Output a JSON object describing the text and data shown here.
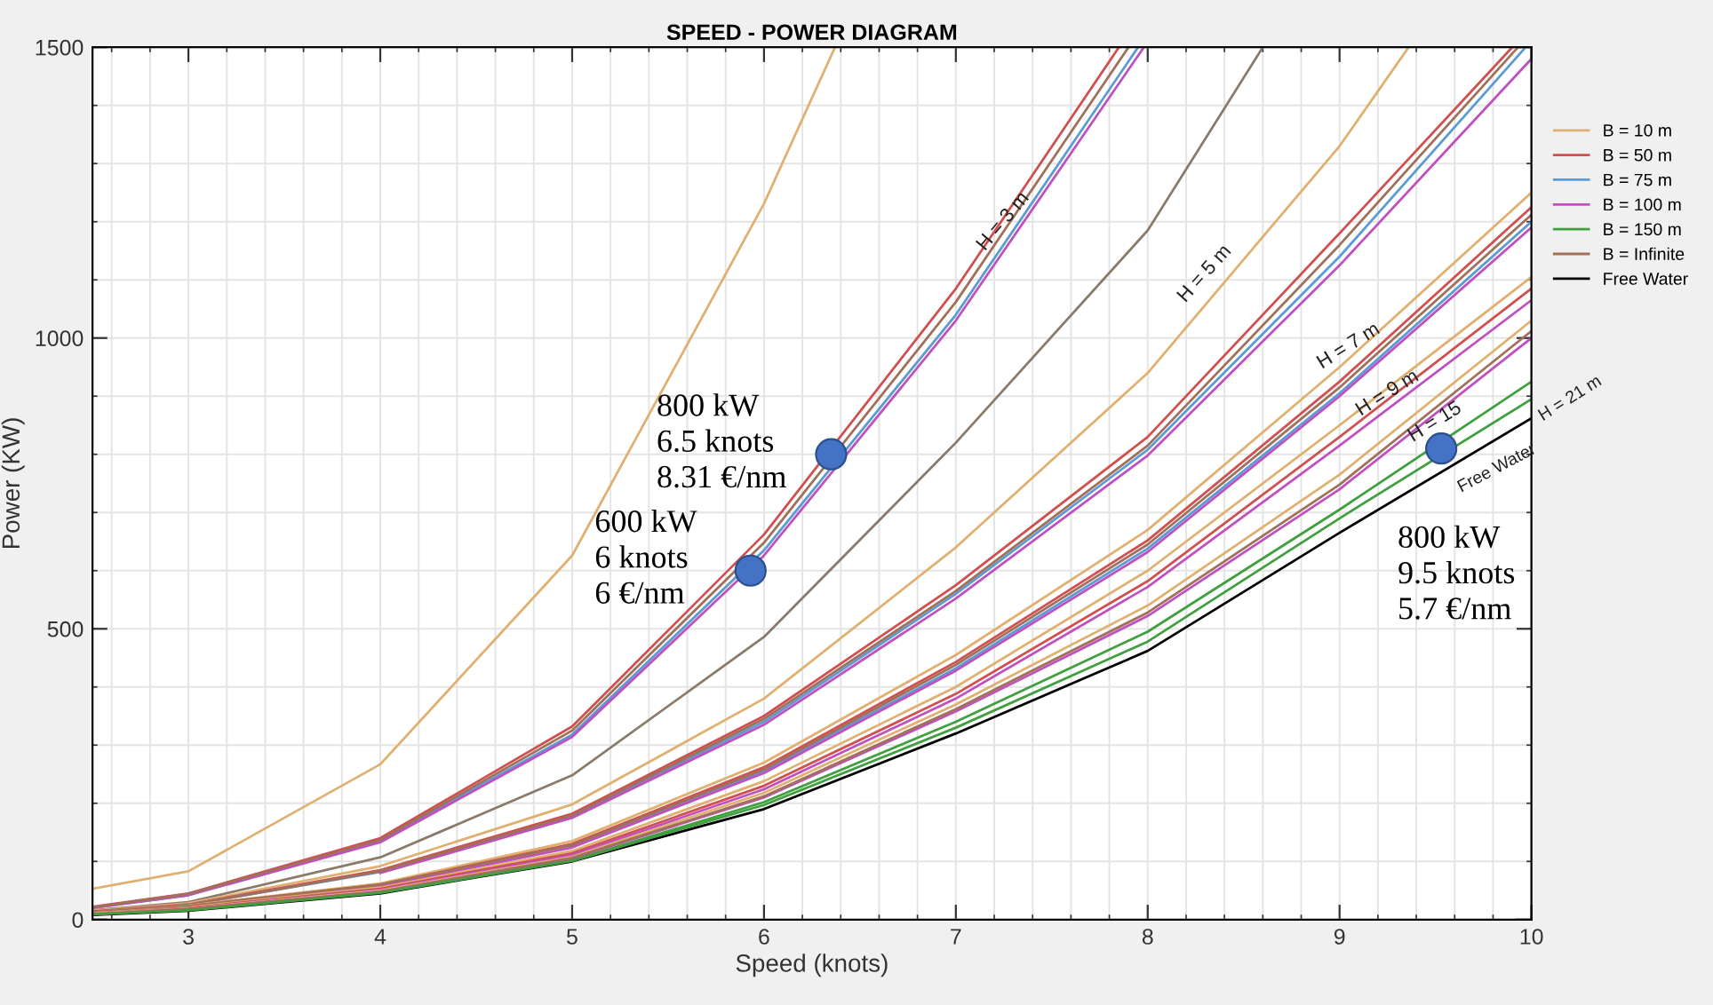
{
  "chart_data": {
    "type": "line",
    "title": "SPEED - POWER DIAGRAM",
    "xlabel": "Speed (knots)",
    "ylabel": "Power (KW)",
    "xlim": [
      2.5,
      10
    ],
    "ylim": [
      0,
      1500
    ],
    "xticks": [
      3,
      4,
      5,
      6,
      7,
      8,
      9,
      10
    ],
    "yticks": [
      0,
      500,
      1000,
      1500
    ],
    "grid": true,
    "legend": "right",
    "marker": "none",
    "line_style": "solid",
    "series": [
      {
        "name": "B = 10 m",
        "color": "#e0b070",
        "x": [
          2.5,
          3,
          4,
          5,
          6,
          6.37
        ],
        "values": [
          53,
          83,
          267,
          626,
          1231,
          1500
        ]
      },
      {
        "name": "B = 50 m",
        "color": "#d05050",
        "x": [
          2.5,
          3,
          4,
          5,
          6,
          7,
          7.85
        ],
        "values": [
          22,
          45,
          140,
          332,
          662,
          1085,
          1500
        ]
      },
      {
        "name": "B = 75 m",
        "color": "#5a9bd5",
        "x": [
          2.5,
          3,
          4,
          5,
          6,
          7,
          7.95
        ],
        "values": [
          20,
          42,
          135,
          318,
          635,
          1040,
          1500
        ]
      },
      {
        "name": "B = 100 m",
        "color": "#c050c0",
        "x": [
          2.5,
          3,
          4,
          5,
          6,
          7,
          7.98
        ],
        "values": [
          20,
          42,
          133,
          314,
          626,
          1030,
          1500
        ]
      },
      {
        "name": "B = 150 m",
        "color": "#40a040",
        "x": [
          2.5,
          3,
          4,
          5,
          6,
          7,
          8,
          9,
          10
        ],
        "values": [
          9,
          17,
          47,
          102,
          202,
          340,
          495,
          705,
          925
        ]
      },
      {
        "name": "B = Infinite",
        "color": "#a0705a",
        "x": [
          2.5,
          3,
          4,
          5,
          6,
          7,
          7.9
        ],
        "values": [
          21,
          44,
          137,
          325,
          648,
          1062,
          1500
        ]
      },
      {
        "name": "Free Water",
        "color": "#000000",
        "x": [
          2.5,
          3,
          4,
          5,
          6,
          7,
          8,
          9,
          10
        ],
        "values": [
          8,
          15,
          45,
          100,
          190,
          320,
          462,
          665,
          862
        ]
      },
      {
        "color": "#8a7a6a",
        "x": [
          2.5,
          3,
          4,
          5,
          6,
          7,
          8,
          8.6
        ],
        "values": [
          16,
          30,
          107,
          248,
          486,
          820,
          1185,
          1500
        ]
      },
      {
        "color": "#e0b070",
        "x": [
          2.5,
          3,
          4,
          5,
          6,
          7,
          8,
          9,
          9.36
        ],
        "values": [
          15,
          28,
          92,
          198,
          380,
          640,
          940,
          1330,
          1500
        ]
      },
      {
        "color": "#d05050",
        "x": [
          2.5,
          3,
          4,
          5,
          6,
          7,
          8,
          9,
          9.9
        ],
        "values": [
          14,
          26,
          85,
          182,
          350,
          575,
          830,
          1180,
          1500
        ]
      },
      {
        "color": "#5a9bd5",
        "x": [
          2.5,
          3,
          4,
          5,
          6,
          7,
          8,
          9,
          9.97
        ],
        "values": [
          13,
          25,
          82,
          177,
          340,
          560,
          808,
          1140,
          1500
        ]
      },
      {
        "color": "#c050c0",
        "x": [
          4,
          5,
          6,
          7,
          8,
          9,
          10
        ],
        "values": [
          80,
          175,
          335,
          552,
          798,
          1125,
          1480
        ]
      },
      {
        "color": "#a0705a",
        "x": [
          2.5,
          3,
          4,
          5,
          6,
          7,
          8,
          9,
          9.93
        ],
        "values": [
          13,
          25,
          83,
          179,
          345,
          565,
          815,
          1160,
          1500
        ]
      },
      {
        "color": "#e0b070",
        "x": [
          2.5,
          3,
          4,
          5,
          6,
          7,
          8,
          9,
          10
        ],
        "values": [
          12,
          24,
          62,
          135,
          270,
          455,
          670,
          950,
          1250
        ]
      },
      {
        "color": "#d05050",
        "x": [
          2.5,
          3,
          4,
          5,
          6,
          7,
          8,
          9,
          10
        ],
        "values": [
          12,
          23,
          60,
          130,
          262,
          443,
          652,
          925,
          1225
        ]
      },
      {
        "color": "#5a9bd5",
        "x": [
          5,
          6,
          7,
          8,
          9,
          10
        ],
        "values": [
          126,
          255,
          432,
          638,
          905,
          1200
        ]
      },
      {
        "color": "#c050c0",
        "x": [
          2.5,
          3,
          4,
          5,
          6,
          7,
          8,
          9,
          10
        ],
        "values": [
          11,
          22,
          57,
          124,
          252,
          428,
          632,
          900,
          1190
        ]
      },
      {
        "color": "#a0705a",
        "x": [
          2.5,
          3,
          4,
          5,
          6,
          7,
          8,
          9,
          10
        ],
        "values": [
          12,
          23,
          60,
          128,
          258,
          438,
          645,
          915,
          1212
        ]
      },
      {
        "color": "#e0b070",
        "x": [
          2.5,
          3,
          4,
          5,
          6,
          7,
          8,
          9,
          10
        ],
        "values": [
          11,
          21,
          55,
          118,
          238,
          400,
          600,
          850,
          1105
        ]
      },
      {
        "color": "#d05050",
        "x": [
          2.5,
          3,
          4,
          5,
          6,
          7,
          8,
          9,
          10
        ],
        "values": [
          10,
          20,
          53,
          114,
          230,
          388,
          582,
          830,
          1085
        ]
      },
      {
        "color": "#c050c0",
        "x": [
          2.5,
          3,
          4,
          5,
          6,
          7,
          8,
          9,
          10
        ],
        "values": [
          10,
          19,
          51,
          111,
          224,
          380,
          572,
          815,
          1065
        ]
      },
      {
        "color": "#e0b070",
        "x": [
          2.5,
          3,
          4,
          5,
          6,
          7,
          8,
          9,
          10
        ],
        "values": [
          10,
          19,
          50,
          108,
          218,
          370,
          540,
          765,
          1030
        ]
      },
      {
        "color": "#c050c0",
        "x": [
          2.5,
          3,
          4,
          5,
          6,
          7,
          8,
          9,
          10
        ],
        "values": [
          9,
          18,
          48,
          105,
          210,
          358,
          522,
          740,
          1000
        ]
      },
      {
        "color": "#a0705a",
        "x": [
          2.5,
          3,
          4,
          5,
          6,
          7,
          8,
          9,
          10
        ],
        "values": [
          9,
          18,
          48,
          106,
          212,
          362,
          528,
          748,
          1012
        ]
      },
      {
        "color": "#40a040",
        "x": [
          2.5,
          3,
          4,
          5,
          6,
          7,
          8,
          9,
          10
        ],
        "values": [
          9,
          16,
          46,
          101,
          197,
          330,
          478,
          690,
          895
        ]
      },
      {
        "type": "scatter",
        "marker": "circle",
        "color": "#4472c4",
        "x": [
          5.93,
          6.35,
          9.53
        ],
        "values": [
          600,
          800,
          810
        ]
      }
    ],
    "annotations": [
      "H = 3 m",
      "H = 5 m",
      "H = 7 m",
      "H = 9 m",
      "H = 15",
      "H = 21 m",
      "Free Water",
      "800 kW\n6.5 knots\n8.31 €/nm",
      "600 kW\n6 knots\n6 €/nm",
      "800 kW\n9.5 knots\n5.7 €/nm"
    ]
  }
}
